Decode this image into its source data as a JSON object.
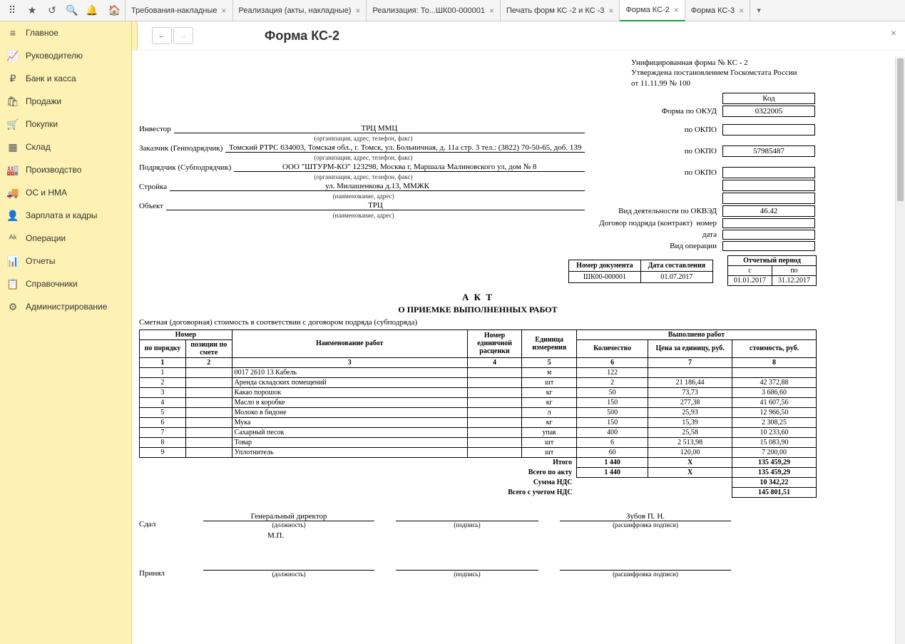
{
  "tabs": [
    {
      "label": "Требования-накладные"
    },
    {
      "label": "Реализация (акты, накладные)"
    },
    {
      "label": "Реализация: То...ШК00-000001"
    },
    {
      "label": "Печать форм КС -2 и КС -3"
    },
    {
      "label": "Форма КС-2",
      "active": true
    },
    {
      "label": "Форма КС-3"
    }
  ],
  "sidebar": [
    {
      "icon": "≡",
      "label": "Главное"
    },
    {
      "icon": "📈",
      "label": "Руководителю"
    },
    {
      "icon": "₽",
      "label": "Банк и касса"
    },
    {
      "icon": "🛍",
      "label": "Продажи"
    },
    {
      "icon": "🛒",
      "label": "Покупки"
    },
    {
      "icon": "▦",
      "label": "Склад"
    },
    {
      "icon": "🏭",
      "label": "Производство"
    },
    {
      "icon": "🚚",
      "label": "ОС и НМА"
    },
    {
      "icon": "👤",
      "label": "Зарплата и кадры"
    },
    {
      "icon": "ᴬᵏ",
      "label": "Операции"
    },
    {
      "icon": "📊",
      "label": "Отчеты"
    },
    {
      "icon": "📋",
      "label": "Справочники"
    },
    {
      "icon": "⚙",
      "label": "Администрирование"
    }
  ],
  "page_title": "Форма КС-2",
  "doc": {
    "h1": "Унифицированная форма № КС - 2",
    "h2": "Утверждена постановлением Госкомстата России",
    "h3": "от 11.11.99 № 100",
    "code_label": "Код",
    "okud_label": "Форма по ОКУД",
    "okud": "0322005",
    "investor_label": "Инвестор",
    "investor": "ТРЦ ММЦ",
    "org_hint": "(организация, адрес, телефон, факс)",
    "customer_label": "Заказчик (Генподрядчик)",
    "customer": "Томский РТРС  634003, Томская обл., г. Томск, ул. Больничная, д. 11а стр. 3  тел.: (3822) 70-50-65, доб. 139",
    "contractor_label": "Подрядчик (Субподрядчик)",
    "contractor": "ООО \"ШТУРМ-КО\"  123298, Москва г, Маршала Малиновского ул, дом № 8",
    "build_label": "Стройка",
    "build": "ул. Милашенкова д.13, ММЖК",
    "build_hint": "(наименование, адрес)",
    "object_label": "Объект",
    "object": "ТРЦ",
    "okpo_label": "по ОКПО",
    "okpo_customer": "57985487",
    "okved_label": "Вид деятельности по ОКВЭД",
    "okved": "46.42",
    "contract_label": "Договор подряда (контракт)",
    "contract_num_label": "номер",
    "contract_date_label": "дата",
    "op_label": "Вид операции",
    "docnum_h1": "Номер документа",
    "docnum_h2": "Дата составления",
    "docnum": "ШК00-000001",
    "docdate": "01.07.2017",
    "period_h": "Отчетный период",
    "period_from_h": "с",
    "period_to_h": "по",
    "period_from": "01.01.2017",
    "period_to": "31.12.2017",
    "akt": "А К Т",
    "akt_sub": "О ПРИЕМКЕ ВЫПОЛНЕННЫХ РАБОТ",
    "smeta": "Сметная (договорная) стоимость в соответствии с договором подряда (субподряда)",
    "cols": {
      "c1": "Номер",
      "c1a": "по порядку",
      "c1b": "позиции по смете",
      "c2": "Наименование работ",
      "c3": "Номер единичной расценки",
      "c4": "Единица измерения",
      "c5": "Выполнено работ",
      "c5a": "Количество",
      "c5b": "Цена за единицу, руб.",
      "c5c": "стоимость, руб."
    },
    "rows": [
      {
        "n": "1",
        "name": "0017 2610 13  Кабель",
        "unit": "м",
        "qty": "122",
        "price": "",
        "cost": ""
      },
      {
        "n": "2",
        "name": "Аренда складских помещений",
        "unit": "шт",
        "qty": "2",
        "price": "21 186,44",
        "cost": "42 372,88"
      },
      {
        "n": "3",
        "name": "Какао порошок",
        "unit": "кг",
        "qty": "50",
        "price": "73,73",
        "cost": "3 686,60"
      },
      {
        "n": "4",
        "name": "Масло в коробке",
        "unit": "кг",
        "qty": "150",
        "price": "277,38",
        "cost": "41 607,56"
      },
      {
        "n": "5",
        "name": "Молоко в бидоне",
        "unit": "л",
        "qty": "500",
        "price": "25,93",
        "cost": "12 966,50"
      },
      {
        "n": "6",
        "name": "Мука",
        "unit": "кг",
        "qty": "150",
        "price": "15,39",
        "cost": "2 308,25"
      },
      {
        "n": "7",
        "name": "Сахарный песок",
        "unit": "упак",
        "qty": "400",
        "price": "25,58",
        "cost": "10 233,60"
      },
      {
        "n": "8",
        "name": "Товар",
        "unit": "шт",
        "qty": "6",
        "price": "2 513,98",
        "cost": "15 083,90"
      },
      {
        "n": "9",
        "name": "Уплотнитель",
        "unit": "шт",
        "qty": "60",
        "price": "120,00",
        "cost": "7 200,00"
      }
    ],
    "totals": {
      "itogo": "Итого",
      "itogo_qty": "1 440",
      "itogo_price": "X",
      "itogo_cost": "135 459,29",
      "vsego": "Всего по акту",
      "vsego_qty": "1 440",
      "vsego_price": "X",
      "vsego_cost": "135 459,29",
      "nds": "Сумма НДС",
      "nds_cost": "10 342,22",
      "with_nds": "Всего с учетом НДС",
      "with_nds_cost": "145 801,51"
    },
    "sign": {
      "sdal": "Сдал",
      "position": "Генеральный директор",
      "pos_hint": "(должность)",
      "sign_hint": "(подпись)",
      "name": "Зубов П. Н.",
      "name_hint": "(расшифровка подписи)",
      "mp": "М.П.",
      "prinyal": "Принял"
    }
  }
}
